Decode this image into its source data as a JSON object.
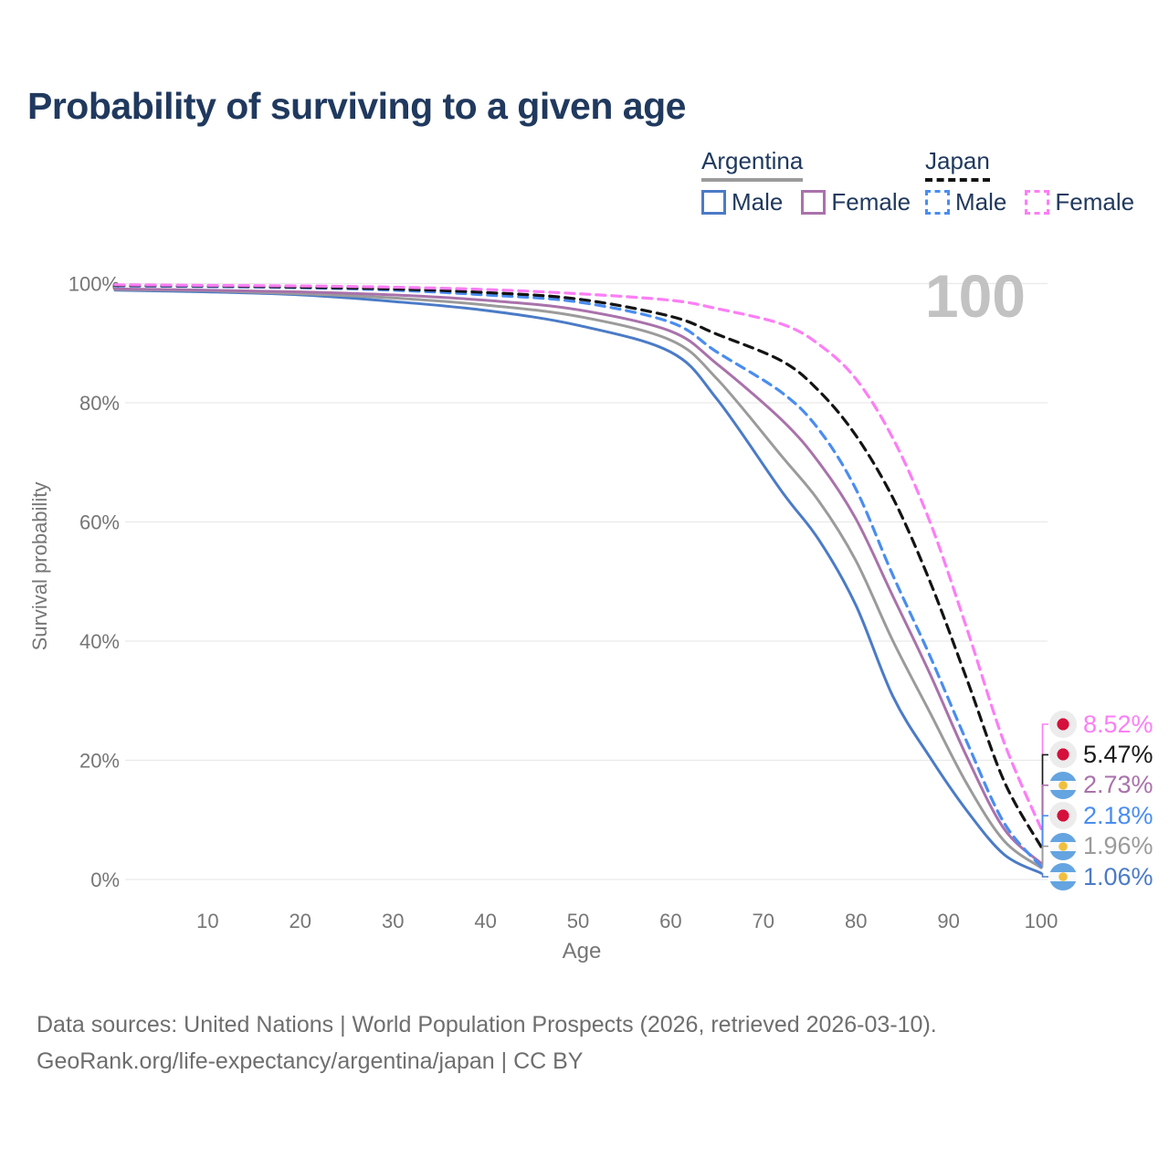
{
  "title": "Probability of surviving to a given age",
  "colors": {
    "navy": "#20395e",
    "axis_gray": "#767676",
    "grid": "#e9e9e9",
    "watermark": "#c2c2c2",
    "footer_gray": "#6e6e6e",
    "bg": "#ffffff"
  },
  "legend": {
    "groups": [
      {
        "name": "Argentina",
        "underline_style": "solid",
        "underline_color": "#9b9b9b",
        "items": [
          {
            "label": "Male",
            "color": "#4b7bc7",
            "dash": false
          },
          {
            "label": "Female",
            "color": "#a972ab",
            "dash": false
          }
        ]
      },
      {
        "name": "Japan",
        "underline_style": "dashed",
        "underline_color": "#141414",
        "items": [
          {
            "label": "Male",
            "color": "#4a8df0",
            "dash": true
          },
          {
            "label": "Female",
            "color": "#fc7ef5",
            "dash": true
          }
        ]
      }
    ]
  },
  "chart_data": {
    "type": "line",
    "title": "Probability of surviving to a given age",
    "xlabel": "Age",
    "ylabel": "Survival probability",
    "xlim": [
      0,
      100
    ],
    "ylim": [
      0,
      100
    ],
    "grid": "horizontal",
    "hover_age_watermark": "100",
    "x_ticks": [
      10,
      20,
      30,
      40,
      50,
      60,
      70,
      80,
      90,
      100
    ],
    "y_ticks": [
      {
        "label": "0%",
        "value": 0
      },
      {
        "label": "20%",
        "value": 20
      },
      {
        "label": "40%",
        "value": 40
      },
      {
        "label": "60%",
        "value": 60
      },
      {
        "label": "80%",
        "value": 80
      },
      {
        "label": "100%",
        "value": 100
      }
    ],
    "series": [
      {
        "name": "Argentina Male",
        "color": "#4b7bc7",
        "dash": false,
        "end_label": "1.06%",
        "points": [
          [
            0,
            98.9
          ],
          [
            10,
            98.6
          ],
          [
            20,
            98.1
          ],
          [
            30,
            97.0
          ],
          [
            40,
            95.5
          ],
          [
            50,
            93.0
          ],
          [
            60,
            88.5
          ],
          [
            65,
            80.6
          ],
          [
            72,
            65.1
          ],
          [
            76,
            57.0
          ],
          [
            80,
            46.0
          ],
          [
            84,
            30.7
          ],
          [
            88,
            20.5
          ],
          [
            92,
            11.5
          ],
          [
            96,
            4.2
          ],
          [
            100,
            1.06
          ]
        ]
      },
      {
        "name": "Argentina",
        "color": "#9b9b9b",
        "dash": false,
        "end_label": "1.96%",
        "points": [
          [
            0,
            99.0
          ],
          [
            10,
            98.8
          ],
          [
            20,
            98.3
          ],
          [
            30,
            97.6
          ],
          [
            40,
            96.4
          ],
          [
            50,
            94.5
          ],
          [
            60,
            90.5
          ],
          [
            65,
            84.0
          ],
          [
            72,
            71.0
          ],
          [
            76,
            63.5
          ],
          [
            80,
            53.5
          ],
          [
            84,
            40.0
          ],
          [
            88,
            28.0
          ],
          [
            92,
            16.0
          ],
          [
            96,
            6.5
          ],
          [
            100,
            1.96
          ]
        ]
      },
      {
        "name": "Argentina Female",
        "color": "#a972ab",
        "dash": false,
        "end_label": "2.73%",
        "points": [
          [
            0,
            99.1
          ],
          [
            10,
            98.9
          ],
          [
            20,
            98.6
          ],
          [
            30,
            98.1
          ],
          [
            40,
            97.2
          ],
          [
            50,
            95.6
          ],
          [
            60,
            92.0
          ],
          [
            65,
            86.5
          ],
          [
            72,
            77.1
          ],
          [
            76,
            70.0
          ],
          [
            80,
            60.5
          ],
          [
            84,
            47.5
          ],
          [
            88,
            34.5
          ],
          [
            92,
            20.5
          ],
          [
            96,
            8.5
          ],
          [
            100,
            2.73
          ]
        ]
      },
      {
        "name": "Japan Male",
        "color": "#4a8df0",
        "dash": true,
        "end_label": "2.18%",
        "points": [
          [
            0,
            99.6
          ],
          [
            10,
            99.5
          ],
          [
            20,
            99.3
          ],
          [
            30,
            98.9
          ],
          [
            40,
            98.1
          ],
          [
            50,
            96.9
          ],
          [
            60,
            93.5
          ],
          [
            65,
            88.5
          ],
          [
            72,
            81.7
          ],
          [
            76,
            75.5
          ],
          [
            80,
            65.5
          ],
          [
            84,
            51.0
          ],
          [
            88,
            37.5
          ],
          [
            92,
            23.0
          ],
          [
            96,
            9.5
          ],
          [
            100,
            2.18
          ]
        ]
      },
      {
        "name": "Japan",
        "color": "#141414",
        "dash": true,
        "end_label": "5.47%",
        "points": [
          [
            0,
            99.7
          ],
          [
            10,
            99.6
          ],
          [
            20,
            99.4
          ],
          [
            30,
            99.1
          ],
          [
            40,
            98.5
          ],
          [
            50,
            97.4
          ],
          [
            60,
            94.5
          ],
          [
            65,
            91.5
          ],
          [
            72,
            87.0
          ],
          [
            76,
            82.0
          ],
          [
            80,
            74.5
          ],
          [
            84,
            64.0
          ],
          [
            88,
            50.0
          ],
          [
            92,
            33.5
          ],
          [
            96,
            16.5
          ],
          [
            100,
            5.47
          ]
        ]
      },
      {
        "name": "Japan Female",
        "color": "#fc7ef5",
        "dash": true,
        "end_label": "8.52%",
        "points": [
          [
            0,
            99.8
          ],
          [
            10,
            99.7
          ],
          [
            20,
            99.6
          ],
          [
            30,
            99.4
          ],
          [
            40,
            99.0
          ],
          [
            50,
            98.3
          ],
          [
            60,
            97.2
          ],
          [
            65,
            95.8
          ],
          [
            72,
            93.2
          ],
          [
            76,
            89.8
          ],
          [
            80,
            84.0
          ],
          [
            84,
            74.0
          ],
          [
            88,
            60.0
          ],
          [
            92,
            42.0
          ],
          [
            96,
            23.0
          ],
          [
            100,
            8.52
          ]
        ]
      }
    ]
  },
  "annotations": [
    {
      "flag": "japan",
      "value": "8.52%",
      "color": "#fc7ef5",
      "end_pct": 8.52
    },
    {
      "flag": "japan",
      "value": "5.47%",
      "color": "#1a1a1a",
      "end_pct": 5.47
    },
    {
      "flag": "argentina",
      "value": "2.73%",
      "color": "#a972ab",
      "end_pct": 2.73
    },
    {
      "flag": "japan",
      "value": "2.18%",
      "color": "#4a8df0",
      "end_pct": 2.18
    },
    {
      "flag": "argentina",
      "value": "1.96%",
      "color": "#9b9b9b",
      "end_pct": 1.96
    },
    {
      "flag": "argentina",
      "value": "1.06%",
      "color": "#4b7bc7",
      "end_pct": 1.06
    }
  ],
  "footer": {
    "line1": "Data sources: United Nations | World Population Prospects (2026, retrieved 2026-03-10).",
    "line2": "GeoRank.org/life-expectancy/argentina/japan | CC BY"
  }
}
